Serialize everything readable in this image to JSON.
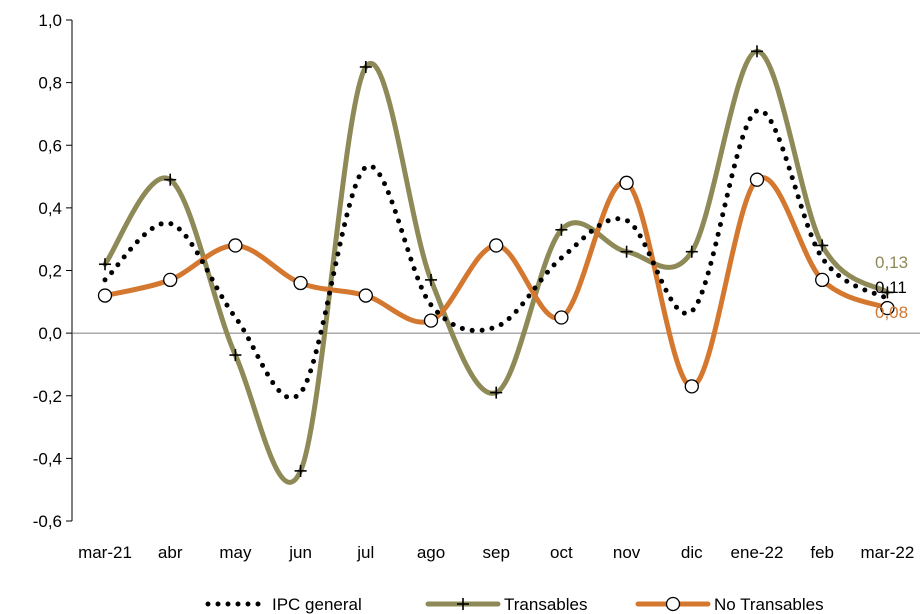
{
  "chart_data": {
    "type": "line",
    "title": "",
    "xlabel": "",
    "ylabel": "",
    "categories": [
      "mar-21",
      "abr",
      "may",
      "jun",
      "jul",
      "ago",
      "sep",
      "oct",
      "nov",
      "dic",
      "ene-22",
      "feb",
      "mar-22"
    ],
    "ylim": [
      -0.6,
      1.0
    ],
    "yticks": [
      -0.6,
      -0.4,
      -0.2,
      0.0,
      0.2,
      0.4,
      0.6,
      0.8,
      1.0
    ],
    "ytick_labels": [
      "-0,6",
      "-0,4",
      "-0,2",
      "0,0",
      "0,2",
      "0,4",
      "0,6",
      "0,8",
      "1,0"
    ],
    "grid": false,
    "legend_position": "bottom",
    "series": [
      {
        "name": "IPC general",
        "color": "#000000",
        "style": "dotted",
        "marker": "none",
        "values": [
          0.17,
          0.35,
          0.05,
          -0.19,
          0.53,
          0.09,
          0.02,
          0.24,
          0.36,
          0.07,
          0.71,
          0.24,
          0.11
        ],
        "end_label": "0,11"
      },
      {
        "name": "Transables",
        "color": "#8e8a57",
        "style": "solid",
        "marker": "plus",
        "values": [
          0.22,
          0.49,
          -0.07,
          -0.44,
          0.85,
          0.17,
          -0.19,
          0.33,
          0.26,
          0.26,
          0.9,
          0.28,
          0.13
        ],
        "end_label": "0,13"
      },
      {
        "name": "No Transables",
        "color": "#d4772f",
        "style": "solid",
        "marker": "circle",
        "values": [
          0.12,
          0.17,
          0.28,
          0.16,
          0.12,
          0.04,
          0.28,
          0.05,
          0.48,
          -0.17,
          0.49,
          0.17,
          0.08
        ],
        "end_label": "0,08"
      }
    ]
  }
}
